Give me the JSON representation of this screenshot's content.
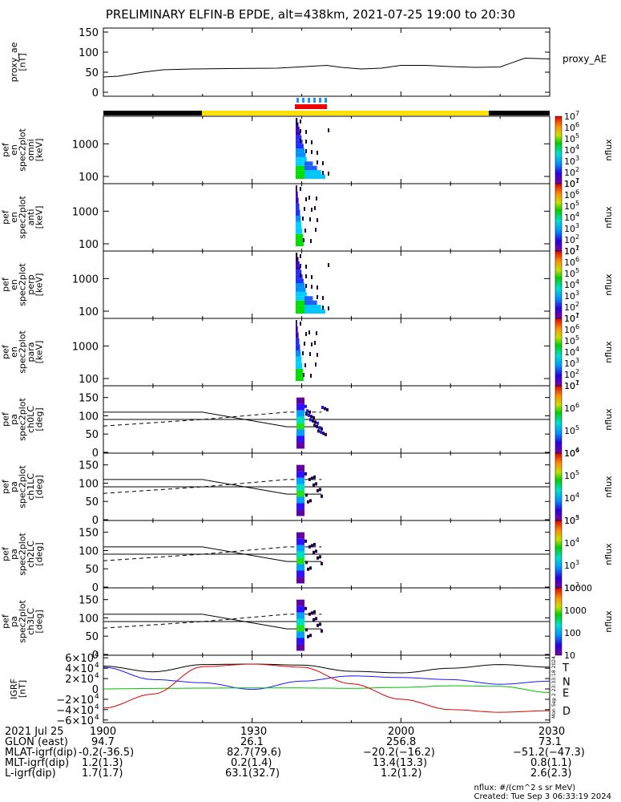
{
  "title": "PRELIMINARY ELFIN-B EPDE, alt=438km, 2021-07-25 19:00 to 20:30",
  "chart_data": [
    {
      "type": "line",
      "panel": "proxy_ae",
      "ylabel": [
        "proxy_ae",
        "[nT]"
      ],
      "legend": "proxy_AE",
      "ylim": [
        -10,
        160
      ],
      "yticks": [
        "0",
        "50",
        "100",
        "150"
      ],
      "x_minutes": [
        0,
        3,
        8,
        12,
        18,
        25,
        35,
        45,
        48,
        52,
        56,
        60,
        65,
        70,
        75,
        80,
        85,
        90
      ],
      "values": [
        38,
        40,
        50,
        56,
        58,
        59,
        60,
        67,
        62,
        58,
        60,
        67,
        67,
        64,
        62,
        63,
        85,
        83
      ]
    },
    {
      "type": "heatmap",
      "panel": "elb_pef_en_spec2plot_omni",
      "ylabel": [
        "elb",
        "pef",
        "en",
        "spec2plot",
        "omni",
        "[keV]"
      ],
      "ytick_labels": [
        "100",
        "1000"
      ],
      "scale": "log",
      "colorbar_label": "nflux",
      "colorbar_ticks": [
        "10",
        "10",
        "10",
        "10",
        "10",
        "10",
        "10"
      ],
      "colorbar_exponents": [
        "1",
        "2",
        "3",
        "4",
        "5",
        "6",
        "7"
      ]
    },
    {
      "type": "heatmap",
      "panel": "elb_pef_en_spec2plot_anti",
      "ylabel": [
        "elb",
        "pef",
        "en",
        "spec2plot",
        "anti",
        "[keV]"
      ],
      "ytick_labels": [
        "100",
        "1000"
      ],
      "scale": "log",
      "colorbar_label": "nflux",
      "colorbar_exponents": [
        "1",
        "2",
        "3",
        "4",
        "5",
        "6",
        "7"
      ]
    },
    {
      "type": "heatmap",
      "panel": "elb_pef_en_spec2plot_perp",
      "ylabel": [
        "elb",
        "pef",
        "en",
        "spec2plot",
        "perp",
        "[keV]"
      ],
      "ytick_labels": [
        "100",
        "1000"
      ],
      "scale": "log",
      "colorbar_label": "nflux",
      "colorbar_exponents": [
        "1",
        "2",
        "3",
        "4",
        "5",
        "6",
        "7"
      ]
    },
    {
      "type": "heatmap",
      "panel": "elb_pef_en_spec2plot_para",
      "ylabel": [
        "elb",
        "pef",
        "en",
        "spec2plot",
        "para",
        "[keV]"
      ],
      "ytick_labels": [
        "100",
        "1000"
      ],
      "scale": "log",
      "colorbar_label": "nflux",
      "colorbar_exponents": [
        "1",
        "2",
        "3",
        "4",
        "5",
        "6",
        "7"
      ]
    },
    {
      "type": "heatmap",
      "panel": "elb_pef_pa_spec2plot_ch0LC",
      "ylabel": [
        "elb",
        "pef",
        "pa",
        "spec2plot",
        "ch0LC",
        "[deg]"
      ],
      "yticks": [
        "0",
        "50",
        "100",
        "150"
      ],
      "ylim": [
        0,
        180
      ],
      "colorbar_label": "nflux",
      "colorbar_exponents": [
        "4",
        "5",
        "6",
        "7"
      ]
    },
    {
      "type": "heatmap",
      "panel": "elb_pef_pa_spec2plot_ch1LC",
      "ylabel": [
        "elb",
        "pef",
        "pa",
        "spec2plot",
        "ch1LC",
        "[deg]"
      ],
      "yticks": [
        "0",
        "50",
        "100",
        "150"
      ],
      "ylim": [
        0,
        180
      ],
      "colorbar_label": "nflux",
      "colorbar_exponents": [
        "3",
        "4",
        "5",
        "6"
      ]
    },
    {
      "type": "heatmap",
      "panel": "elb_pef_pa_spec2plot_ch2LC",
      "ylabel": [
        "elb",
        "pef",
        "pa",
        "spec2plot",
        "ch2LC",
        "[deg]"
      ],
      "yticks": [
        "0",
        "50",
        "100",
        "150"
      ],
      "ylim": [
        0,
        180
      ],
      "colorbar_label": "nflux",
      "colorbar_exponents": [
        "2",
        "3",
        "4",
        "5"
      ]
    },
    {
      "type": "heatmap",
      "panel": "elb_pef_pa_spec2plot_ch3LC",
      "ylabel": [
        "elb",
        "pef",
        "pa",
        "spec2plot",
        "ch3LC",
        "[deg]"
      ],
      "yticks": [
        "0",
        "50",
        "100",
        "150"
      ],
      "ylim": [
        0,
        180
      ],
      "colorbar_label": "nflux",
      "colorbar_ticks": [
        "10",
        "100",
        "1000",
        "10000"
      ]
    },
    {
      "type": "line",
      "panel": "IGRF",
      "ylabel": [
        "IGRF",
        "[nT]"
      ],
      "ylim": [
        -65000,
        65000
      ],
      "ytick_labels": [
        "6×10",
        "4×10",
        "2×10",
        "0",
        "−2×10",
        "−4×10",
        "−6×10"
      ],
      "ytick_exponent": "4",
      "x_minutes": [
        0,
        10,
        20,
        30,
        40,
        50,
        60,
        70,
        80,
        90
      ],
      "series": [
        {
          "name": "T",
          "color": "#000000",
          "values": [
            44000,
            33000,
            47000,
            48000,
            46000,
            34000,
            31000,
            40000,
            47000,
            42000
          ]
        },
        {
          "name": "N",
          "color": "#1a1aff",
          "values": [
            42000,
            18000,
            12000,
            -1000,
            15000,
            25000,
            22000,
            18000,
            9000,
            15000
          ]
        },
        {
          "name": "E",
          "color": "#00c000",
          "values": [
            0,
            1000,
            1500,
            2000,
            1800,
            1200,
            3000,
            6000,
            5000,
            -7000
          ]
        },
        {
          "name": "D",
          "color": "#e00000",
          "values": [
            -37000,
            -10000,
            43000,
            48000,
            42000,
            10000,
            -20000,
            -40000,
            -45000,
            -42000
          ]
        }
      ]
    }
  ],
  "orbit_bar": {
    "segments_colors": [
      "#000000",
      "#ffe000",
      "#000000"
    ],
    "science_zone_color": "#ee0000",
    "science_zone_tick_color": "#1e90ff"
  },
  "xaxis": {
    "row_labels": [
      "2021 Jul 25",
      "GLON (east)",
      "MLAT-igrf(dip)",
      "MLT-igrf(dip)",
      "L-igrf(dip)"
    ],
    "columns": [
      {
        "time": "1900",
        "values": [
          "94.7",
          "-0.2(-36.5)",
          "1.2(1.3)",
          "1.7(1.7)"
        ]
      },
      {
        "time": "1930",
        "values": [
          "26.1",
          "82.7(79.6)",
          "0.2(1.4)",
          "63.1(32.7)"
        ]
      },
      {
        "time": "2000",
        "values": [
          "256.8",
          "−20.2(−16.2)",
          "13.4(13.3)",
          "1.2(1.2)"
        ]
      },
      {
        "time": "2030",
        "values": [
          "73.1",
          "−51.2(−47.3)",
          "0.8(1.1)",
          "2.6(2.3)"
        ]
      }
    ]
  },
  "side_stamp": "Mon Sep 2 23:33:18 2024",
  "footer": {
    "units": "nflux: #/(cm^2 s sr MeV)",
    "created": "Created: Tue Sep  3 06:33:19 2024"
  }
}
